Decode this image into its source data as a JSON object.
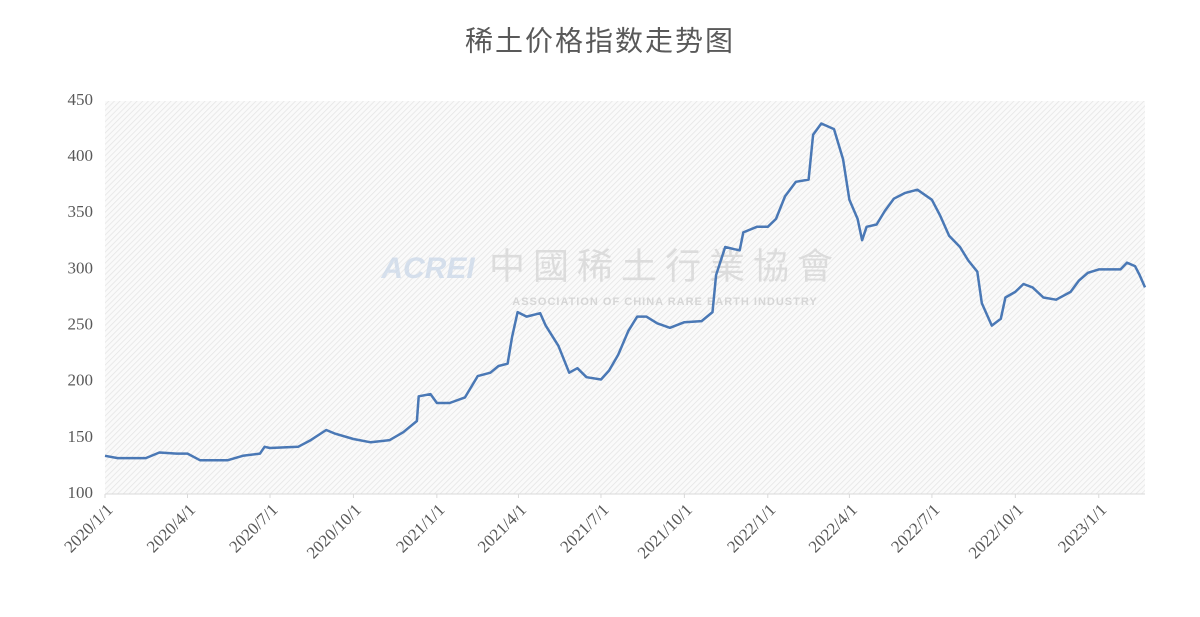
{
  "chart_data": {
    "type": "line",
    "title": "稀土价格指数走势图",
    "annotations": [
      "ACREI",
      "中國稀土行業協會",
      "ASSOCIATION OF CHINA RARE EARTH INDUSTRY"
    ],
    "x": [
      "2020/1/1",
      "2020/1/15",
      "2020/2/15",
      "2020/3/1",
      "2020/3/20",
      "2020/4/1",
      "2020/4/15",
      "2020/5/15",
      "2020/6/1",
      "2020/6/20",
      "2020/6/25",
      "2020/7/1",
      "2020/8/1",
      "2020/8/15",
      "2020/9/1",
      "2020/9/10",
      "2020/10/1",
      "2020/10/20",
      "2020/11/10",
      "2020/11/25",
      "2020/12/10",
      "2020/12/12",
      "2020/12/25",
      "2021/1/1",
      "2021/1/15",
      "2021/2/1",
      "2021/2/15",
      "2021/3/1",
      "2021/3/10",
      "2021/3/20",
      "2021/3/25",
      "2021/3/31",
      "2021/4/10",
      "2021/4/25",
      "2021/5/1",
      "2021/5/15",
      "2021/5/27",
      "2021/6/5",
      "2021/6/15",
      "2021/7/1",
      "2021/7/10",
      "2021/7/20",
      "2021/7/31",
      "2021/8/10",
      "2021/8/20",
      "2021/9/1",
      "2021/9/15",
      "2021/10/1",
      "2021/10/20",
      "2021/11/1",
      "2021/11/5",
      "2021/11/15",
      "2021/11/25",
      "2021/12/1",
      "2021/12/5",
      "2021/12/20",
      "2022/1/1",
      "2022/1/10",
      "2022/1/20",
      "2022/2/1",
      "2022/2/15",
      "2022/2/20",
      "2022/3/1",
      "2022/3/15",
      "2022/3/25",
      "2022/4/1",
      "2022/4/10",
      "2022/4/15",
      "2022/4/20",
      "2022/5/1",
      "2022/5/10",
      "2022/5/20",
      "2022/6/1",
      "2022/6/15",
      "2022/7/1",
      "2022/7/10",
      "2022/7/20",
      "2022/8/1",
      "2022/8/10",
      "2022/8/20",
      "2022/8/25",
      "2022/9/5",
      "2022/9/15",
      "2022/9/20",
      "2022/10/1",
      "2022/10/10",
      "2022/10/20",
      "2022/11/1",
      "2022/11/15",
      "2022/12/1",
      "2022/12/10",
      "2022/12/20",
      "2023/1/1",
      "2023/1/25",
      "2023/2/1",
      "2023/2/10",
      "2023/2/15",
      "2023/2/21"
    ],
    "series": [
      {
        "name": "稀土价格指数",
        "color": "#4a78b5",
        "values": [
          134,
          132,
          132,
          137,
          136,
          136,
          130,
          130,
          134,
          136,
          142,
          141,
          142,
          148,
          157,
          154,
          149,
          146,
          148,
          155,
          165,
          187,
          189,
          181,
          181,
          186,
          205,
          208,
          214,
          216,
          240,
          262,
          258,
          261,
          250,
          232,
          208,
          212,
          204,
          202,
          210,
          224,
          245,
          258,
          258,
          252,
          248,
          253,
          254,
          262,
          295,
          320,
          318,
          317,
          333,
          338,
          338,
          345,
          365,
          378,
          380,
          420,
          430,
          425,
          398,
          362,
          345,
          326,
          338,
          340,
          352,
          363,
          368,
          371,
          362,
          348,
          330,
          320,
          308,
          298,
          270,
          250,
          256,
          275,
          280,
          287,
          284,
          275,
          273,
          280,
          290,
          297,
          300,
          300,
          306,
          303,
          295,
          284
        ]
      }
    ],
    "xlim": [
      "2020/1/1",
      "2023/2/21"
    ],
    "xticks": [
      "2020/1/1",
      "2020/4/1",
      "2020/7/1",
      "2020/10/1",
      "2021/1/1",
      "2021/4/1",
      "2021/7/1",
      "2021/10/1",
      "2022/1/1",
      "2022/4/1",
      "2022/7/1",
      "2022/10/1",
      "2023/1/1"
    ],
    "ylim": [
      100,
      450
    ],
    "yticks": [
      100,
      150,
      200,
      250,
      300,
      350,
      400,
      450
    ],
    "grid": false
  }
}
